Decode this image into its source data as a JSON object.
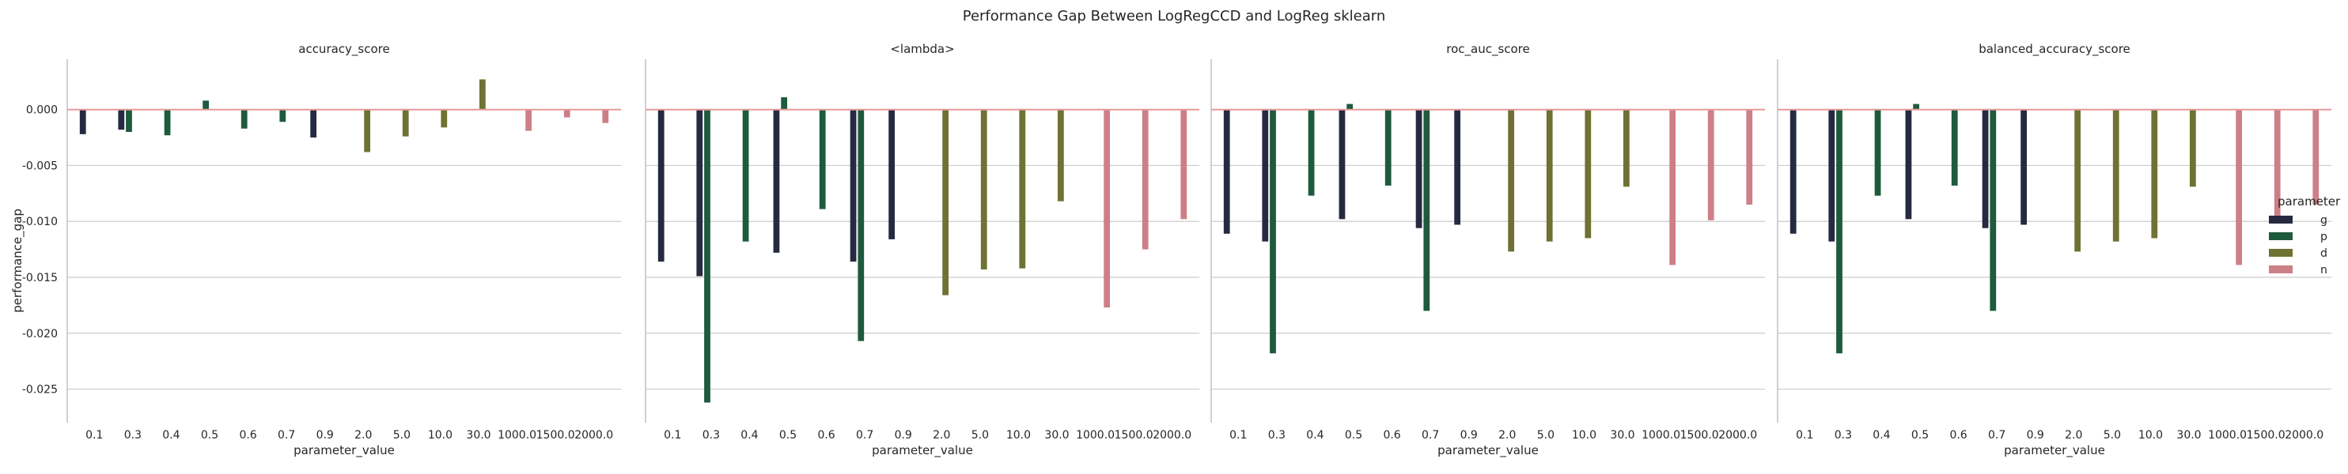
{
  "figure": {
    "suptitle": "Performance Gap Between LogRegCCD and LogReg sklearn",
    "ylabel": "performance_gap",
    "xlabel": "parameter_value"
  },
  "legend": {
    "title": "parameter",
    "placement": "right",
    "entries": [
      {
        "label": "g",
        "color": "#262a41"
      },
      {
        "label": "p",
        "color": "#1e5a3c"
      },
      {
        "label": "d",
        "color": "#6e7232"
      },
      {
        "label": "n",
        "color": "#cd7f87"
      }
    ]
  },
  "chart_data": [
    {
      "type": "bar",
      "title": "accuracy_score",
      "xlabel": "parameter_value",
      "ylabel": "performance_gap",
      "ylim": [
        -0.028,
        0.0045
      ],
      "yticks": [
        "0.000",
        "-0.005",
        "-0.010",
        "-0.015",
        "-0.020",
        "-0.025"
      ],
      "ytick_values": [
        0.0,
        -0.005,
        -0.01,
        -0.015,
        -0.02,
        -0.025
      ],
      "categories": [
        "0.1",
        "0.3",
        "0.4",
        "0.5",
        "0.6",
        "0.7",
        "0.9",
        "2.0",
        "5.0",
        "10.0",
        "30.0",
        "1000.0",
        "1500.0",
        "2000.0"
      ],
      "hline": 0.0,
      "series": [
        {
          "name": "g",
          "values": [
            -0.0022,
            -0.0018,
            null,
            null,
            null,
            null,
            -0.0025,
            null,
            null,
            null,
            null,
            null,
            null,
            null
          ]
        },
        {
          "name": "p",
          "values": [
            null,
            -0.002,
            -0.0023,
            0.0008,
            -0.0017,
            -0.0011,
            null,
            null,
            null,
            null,
            null,
            null,
            null,
            null
          ]
        },
        {
          "name": "d",
          "values": [
            null,
            null,
            null,
            null,
            null,
            null,
            null,
            -0.0038,
            -0.0024,
            -0.0016,
            0.0027,
            null,
            null,
            null
          ]
        },
        {
          "name": "n",
          "values": [
            null,
            null,
            null,
            null,
            null,
            null,
            null,
            null,
            null,
            null,
            null,
            -0.0019,
            -0.0007,
            -0.0012
          ]
        }
      ]
    },
    {
      "type": "bar",
      "title": "<lambda>",
      "xlabel": "parameter_value",
      "ylabel": "",
      "ylim": [
        -0.028,
        0.0045
      ],
      "categories": [
        "0.1",
        "0.3",
        "0.4",
        "0.5",
        "0.6",
        "0.7",
        "0.9",
        "2.0",
        "5.0",
        "10.0",
        "30.0",
        "1000.0",
        "1500.0",
        "2000.0"
      ],
      "hline": 0.0,
      "series": [
        {
          "name": "g",
          "values": [
            -0.0136,
            -0.0149,
            null,
            -0.0128,
            null,
            -0.0136,
            -0.0116,
            null,
            null,
            null,
            null,
            null,
            null,
            null
          ]
        },
        {
          "name": "p",
          "values": [
            null,
            -0.0262,
            -0.0118,
            0.0011,
            -0.0089,
            -0.0207,
            null,
            null,
            null,
            null,
            null,
            null,
            null,
            null
          ]
        },
        {
          "name": "d",
          "values": [
            null,
            null,
            null,
            null,
            null,
            null,
            null,
            -0.0166,
            -0.0143,
            -0.0142,
            -0.0082,
            null,
            null,
            null
          ]
        },
        {
          "name": "n",
          "values": [
            null,
            null,
            null,
            null,
            null,
            null,
            null,
            null,
            null,
            null,
            null,
            -0.0177,
            -0.0125,
            -0.0098
          ]
        }
      ]
    },
    {
      "type": "bar",
      "title": "roc_auc_score",
      "xlabel": "parameter_value",
      "ylabel": "",
      "ylim": [
        -0.028,
        0.0045
      ],
      "categories": [
        "0.1",
        "0.3",
        "0.4",
        "0.5",
        "0.6",
        "0.7",
        "0.9",
        "2.0",
        "5.0",
        "10.0",
        "30.0",
        "1000.0",
        "1500.0",
        "2000.0"
      ],
      "hline": 0.0,
      "series": [
        {
          "name": "g",
          "values": [
            -0.0111,
            -0.0118,
            null,
            -0.0098,
            null,
            -0.0106,
            -0.0103,
            null,
            null,
            null,
            null,
            null,
            null,
            null
          ]
        },
        {
          "name": "p",
          "values": [
            null,
            -0.0218,
            -0.0077,
            0.0005,
            -0.0068,
            -0.018,
            null,
            null,
            null,
            null,
            null,
            null,
            null,
            null
          ]
        },
        {
          "name": "d",
          "values": [
            null,
            null,
            null,
            null,
            null,
            null,
            null,
            -0.0127,
            -0.0118,
            -0.0115,
            -0.0069,
            null,
            null,
            null
          ]
        },
        {
          "name": "n",
          "values": [
            null,
            null,
            null,
            null,
            null,
            null,
            null,
            null,
            null,
            null,
            null,
            -0.0139,
            -0.0099,
            -0.0085
          ]
        }
      ]
    },
    {
      "type": "bar",
      "title": "balanced_accuracy_score",
      "xlabel": "parameter_value",
      "ylabel": "",
      "ylim": [
        -0.028,
        0.0045
      ],
      "categories": [
        "0.1",
        "0.3",
        "0.4",
        "0.5",
        "0.6",
        "0.7",
        "0.9",
        "2.0",
        "5.0",
        "10.0",
        "30.0",
        "1000.0",
        "1500.0",
        "2000.0"
      ],
      "hline": 0.0,
      "series": [
        {
          "name": "g",
          "values": [
            -0.0111,
            -0.0118,
            null,
            -0.0098,
            null,
            -0.0106,
            -0.0103,
            null,
            null,
            null,
            null,
            null,
            null,
            null
          ]
        },
        {
          "name": "p",
          "values": [
            null,
            -0.0218,
            -0.0077,
            0.0005,
            -0.0068,
            -0.018,
            null,
            null,
            null,
            null,
            null,
            null,
            null,
            null
          ]
        },
        {
          "name": "d",
          "values": [
            null,
            null,
            null,
            null,
            null,
            null,
            null,
            -0.0127,
            -0.0118,
            -0.0115,
            -0.0069,
            null,
            null,
            null
          ]
        },
        {
          "name": "n",
          "values": [
            null,
            null,
            null,
            null,
            null,
            null,
            null,
            null,
            null,
            null,
            null,
            -0.0139,
            -0.0099,
            -0.0085
          ]
        }
      ]
    }
  ]
}
